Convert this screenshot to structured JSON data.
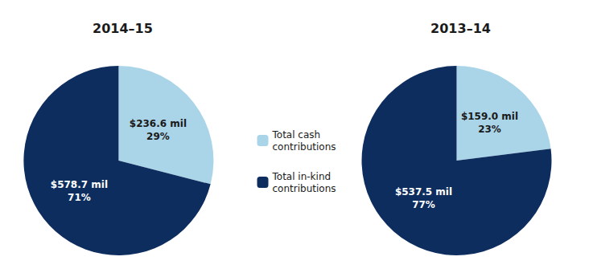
{
  "chart_data": [
    {
      "type": "pie",
      "title": "2014–15",
      "categories": [
        "Total cash\ncontributions",
        "Total in-kind\ncontributions"
      ],
      "values": [
        29,
        71
      ],
      "value_labels": [
        "$236.6 mil\n29%",
        "$578.7 mil\n71%"
      ],
      "colors": [
        "#aad4e8",
        "#0d2d5e"
      ],
      "legend": "center"
    },
    {
      "type": "pie",
      "title": "2013–14",
      "categories": [
        "Total cash\ncontributions",
        "Total in-kind\ncontributions"
      ],
      "values": [
        23,
        77
      ],
      "value_labels": [
        "$159.0 mil\n23%",
        "$537.5 mil\n77%"
      ],
      "colors": [
        "#aad4e8",
        "#0d2d5e"
      ],
      "legend": "center"
    }
  ]
}
